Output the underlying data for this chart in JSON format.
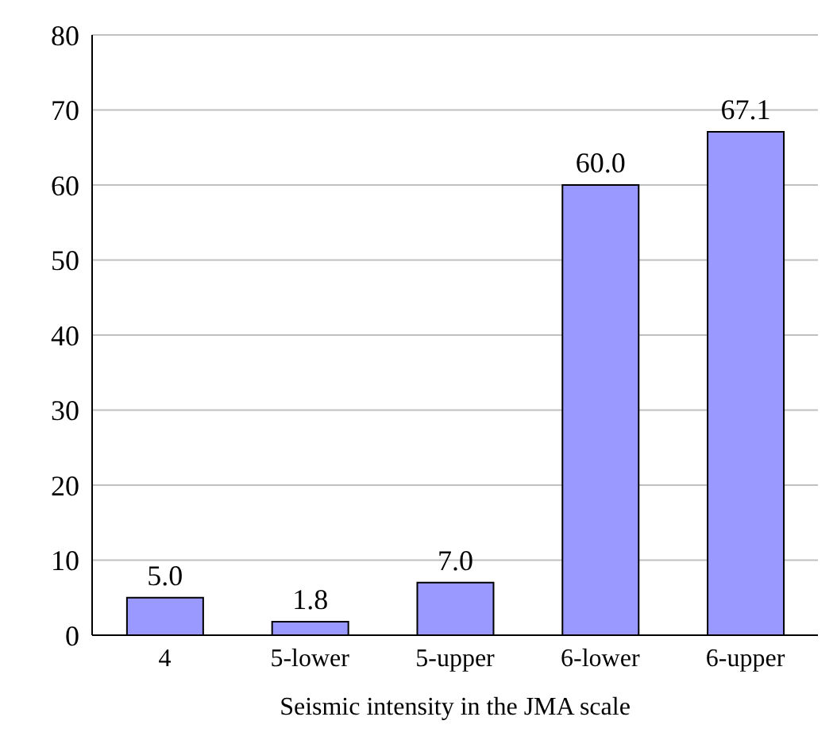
{
  "chart_data": {
    "type": "bar",
    "xlabel": "Seismic intensity in the JMA scale",
    "categories": [
      "4",
      "5-lower",
      "5-upper",
      "6-lower",
      "6-upper"
    ],
    "values": [
      5.0,
      1.8,
      7.0,
      60.0,
      67.1
    ],
    "value_labels": [
      "5.0",
      "1.8",
      "7.0",
      "60.0",
      "67.1"
    ],
    "color": "#9999ff",
    "ylim": [
      0,
      80
    ],
    "yticks": [
      0,
      10,
      20,
      30,
      40,
      50,
      60,
      70,
      80
    ],
    "grid": "y",
    "legend": false
  }
}
